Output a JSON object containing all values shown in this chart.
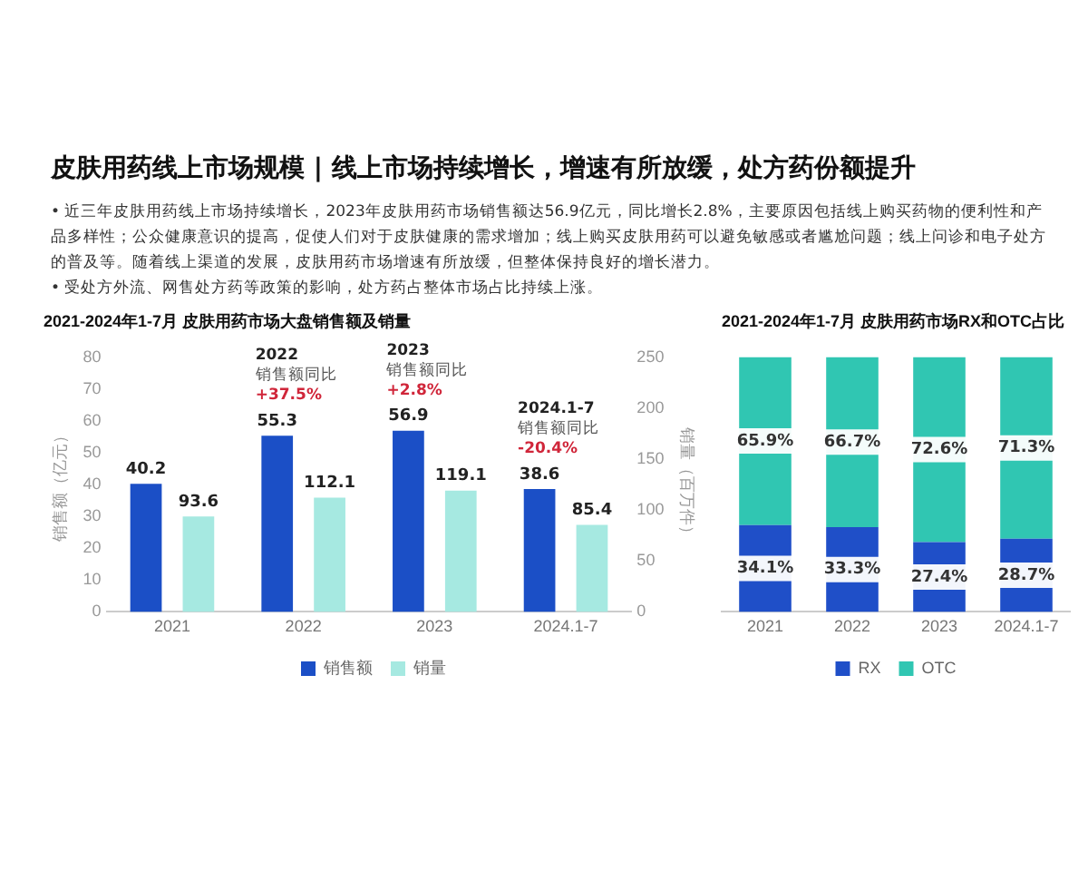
{
  "chart_data": [
    {
      "type": "other",
      "title": "皮肤用药线上市场规模 | 线上市场持续增长，增速有所放缓，处方药份额提升",
      "annotations": [
        "• 近三年皮肤用药线上市场持续增长，2023年皮肤用药市场销售额达56.9亿元，同比增长2.8%，主要原因包括线上购买药物的便利性和产品多样性；公众健康意识的提高，促使人们对于皮肤健康的需求增加；线上购买皮肤用药可以避免敏感或者尴尬问题；线上问诊和电子处方的普及等。随着线上渠道的发展，皮肤用药市场增速有所放缓，但整体保持良好的增长潜力。",
        "• 受处方外流、网售处方药等政策的影响，处方药占整体市场占比持续上涨。"
      ]
    },
    {
      "type": "bar",
      "title": "2021-2024年1-7月 皮肤用药市场大盘销售额及销量",
      "categories": [
        "2021",
        "2022",
        "2023",
        "2024.1-7"
      ],
      "series": [
        {
          "name": "销售额",
          "color": "#1b4fc6",
          "values": [
            40.2,
            55.3,
            56.9,
            38.6
          ]
        },
        {
          "name": "销量",
          "color": "#a6e9e1",
          "values": [
            93.6,
            112.1,
            119.1,
            85.4
          ],
          "axis": "y2"
        }
      ],
      "ylabel": "销售额（亿元）",
      "y2label": "销量（百万件）",
      "ylim": [
        0,
        80
      ],
      "yticks": [
        0,
        10,
        20,
        30,
        40,
        50,
        60,
        70,
        80
      ],
      "y2lim": [
        0,
        250
      ],
      "y2ticks": [
        0,
        50,
        100,
        150,
        200,
        250
      ],
      "data_labels": true,
      "legend": "bottom",
      "annotations": [
        "2022\n销售额同比\n+37.5%",
        "2023\n销售额同比\n+2.8%",
        "2024.1-7\n销售额同比\n-20.4%"
      ]
    },
    {
      "type": "bar",
      "title": "2021-2024年1-7月 皮肤用药市场RX和OTC占比",
      "categories": [
        "2021",
        "2022",
        "2023",
        "2024.1-7"
      ],
      "stacked": true,
      "series": [
        {
          "name": "RX",
          "color": "#1f4fc8",
          "values": [
            34.1,
            33.3,
            27.4,
            28.7
          ],
          "value_labels": [
            "34.1%",
            "33.3%",
            "27.4%",
            "28.7%"
          ]
        },
        {
          "name": "OTC",
          "color": "#30c6b2",
          "values": [
            65.9,
            66.7,
            72.6,
            71.3
          ],
          "value_labels": [
            "65.9%",
            "66.7%",
            "72.6%",
            "71.3%"
          ]
        }
      ],
      "tick_labels": "x",
      "legend": "bottom"
    }
  ]
}
